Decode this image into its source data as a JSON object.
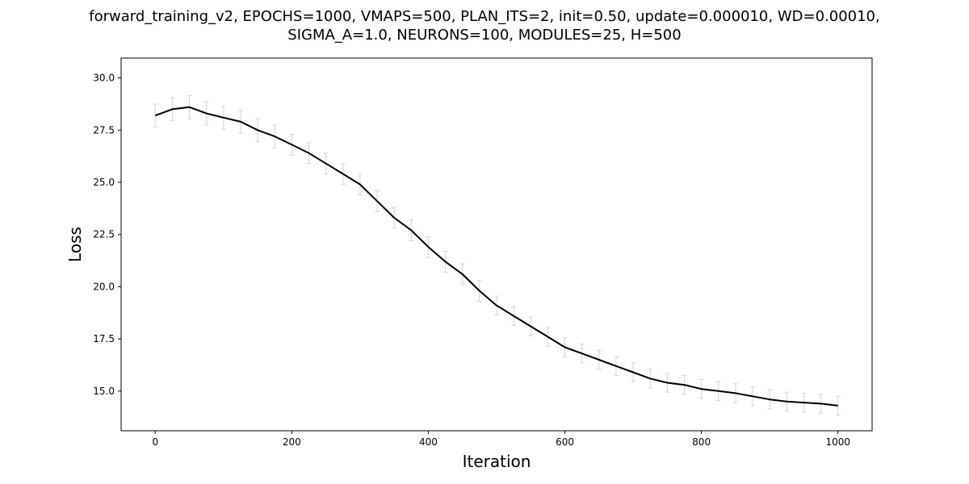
{
  "chart_data": {
    "type": "line",
    "title_line1": "forward_training_v2, EPOCHS=1000, VMAPS=500, PLAN_ITS=2, init=0.50, update=0.000010, WD=0.00010,",
    "title_line2": "SIGMA_A=1.0, NEURONS=100, MODULES=25, H=500",
    "xlabel": "Iteration",
    "ylabel": "Loss",
    "xlim": [
      -50,
      1050
    ],
    "ylim": [
      13.1,
      30.95
    ],
    "xticks": [
      0,
      200,
      400,
      600,
      800,
      1000
    ],
    "xtick_labels": [
      "0",
      "200",
      "400",
      "600",
      "800",
      "1000"
    ],
    "yticks": [
      15.0,
      17.5,
      20.0,
      22.5,
      25.0,
      27.5,
      30.0
    ],
    "ytick_labels": [
      "15.0",
      "17.5",
      "20.0",
      "22.5",
      "25.0",
      "27.5",
      "30.0"
    ],
    "grid": false,
    "series": [
      {
        "line_color": "#000000",
        "errorbar_color": "#d3d3d3",
        "x": [
          0,
          25,
          50,
          75,
          100,
          125,
          150,
          175,
          200,
          225,
          250,
          275,
          300,
          325,
          350,
          375,
          400,
          425,
          450,
          475,
          500,
          525,
          550,
          575,
          600,
          625,
          650,
          675,
          700,
          725,
          750,
          775,
          800,
          825,
          850,
          875,
          900,
          925,
          950,
          975,
          1000
        ],
        "y": [
          28.2,
          28.5,
          28.6,
          28.3,
          28.1,
          27.9,
          27.5,
          27.2,
          26.8,
          26.4,
          25.9,
          25.4,
          24.9,
          24.1,
          23.3,
          22.7,
          21.9,
          21.2,
          20.6,
          19.8,
          19.1,
          18.6,
          18.1,
          17.6,
          17.1,
          16.8,
          16.5,
          16.2,
          15.9,
          15.6,
          15.4,
          15.3,
          15.1,
          15.0,
          14.9,
          14.75,
          14.6,
          14.5,
          14.45,
          14.4,
          14.3
        ],
        "yerr": [
          0.55,
          0.55,
          0.55,
          0.55,
          0.55,
          0.55,
          0.55,
          0.55,
          0.5,
          0.5,
          0.5,
          0.5,
          0.5,
          0.5,
          0.5,
          0.5,
          0.5,
          0.5,
          0.5,
          0.5,
          0.45,
          0.45,
          0.45,
          0.45,
          0.45,
          0.45,
          0.45,
          0.45,
          0.45,
          0.45,
          0.45,
          0.45,
          0.45,
          0.45,
          0.45,
          0.45,
          0.45,
          0.45,
          0.45,
          0.45,
          0.45
        ]
      }
    ]
  }
}
